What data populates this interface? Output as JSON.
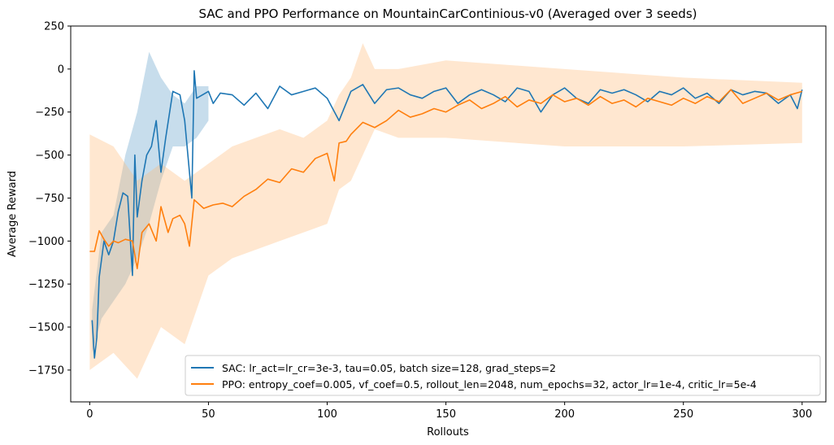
{
  "chart_data": {
    "type": "line",
    "title": "SAC and PPO Performance on MountainCarContinious-v0 (Averaged over 3 seeds)",
    "xlabel": "Rollouts",
    "ylabel": "Average Reward",
    "xlim": [
      -8,
      310
    ],
    "ylim": [
      -1935,
      250
    ],
    "xticks": [
      0,
      50,
      100,
      150,
      200,
      250,
      300
    ],
    "yticks": [
      250,
      0,
      -250,
      -500,
      -750,
      -1000,
      -1250,
      -1500,
      -1750
    ],
    "grid": false,
    "legend_position": "lower-right",
    "series": [
      {
        "name": "SAC: lr_act=lr_cr=3e-3, tau=0.05, batch size=128, grad_steps=2",
        "color": "#1f77b4",
        "x": [
          1,
          2,
          3,
          4,
          6,
          8,
          10,
          12,
          14,
          16,
          18,
          19,
          20,
          22,
          24,
          26,
          28,
          30,
          32,
          35,
          38,
          40,
          43,
          44,
          45,
          50,
          52,
          55,
          60,
          65,
          70,
          75,
          80,
          85,
          90,
          95,
          100,
          105,
          110,
          115,
          120,
          125,
          130,
          135,
          140,
          145,
          150,
          155,
          160,
          165,
          170,
          175,
          180,
          185,
          190,
          195,
          200,
          205,
          210,
          215,
          220,
          225,
          230,
          235,
          240,
          245,
          250,
          255,
          260,
          265,
          270,
          275,
          280,
          285,
          290,
          295,
          298,
          300
        ],
        "values": [
          -1460,
          -1680,
          -1560,
          -1210,
          -1000,
          -1080,
          -1000,
          -830,
          -720,
          -740,
          -1200,
          -500,
          -860,
          -650,
          -500,
          -450,
          -300,
          -600,
          -400,
          -130,
          -150,
          -300,
          -750,
          -10,
          -170,
          -130,
          -200,
          -140,
          -150,
          -210,
          -140,
          -230,
          -100,
          -150,
          -130,
          -110,
          -170,
          -300,
          -130,
          -90,
          -200,
          -120,
          -110,
          -150,
          -170,
          -130,
          -110,
          -200,
          -150,
          -120,
          -150,
          -190,
          -110,
          -130,
          -250,
          -150,
          -110,
          -170,
          -200,
          -120,
          -140,
          -120,
          -150,
          -190,
          -130,
          -150,
          -110,
          -170,
          -140,
          -200,
          -120,
          -150,
          -130,
          -140,
          -200,
          -150,
          -230,
          -120
        ]
      },
      {
        "name": "PPO: entropy_coef=0.005, vf_coef=0.5, rollout_len=2048, num_epochs=32, actor_lr=1e-4, critic_lr=5e-4",
        "color": "#ff7f0e",
        "x": [
          0,
          2,
          4,
          6,
          8,
          10,
          12,
          15,
          18,
          20,
          22,
          25,
          28,
          30,
          33,
          35,
          38,
          40,
          42,
          44,
          48,
          52,
          56,
          60,
          65,
          70,
          75,
          80,
          85,
          90,
          95,
          100,
          103,
          105,
          108,
          110,
          115,
          120,
          125,
          130,
          135,
          140,
          145,
          150,
          155,
          160,
          165,
          170,
          175,
          180,
          185,
          190,
          195,
          200,
          205,
          210,
          215,
          220,
          225,
          230,
          235,
          240,
          245,
          250,
          255,
          260,
          265,
          270,
          275,
          280,
          285,
          290,
          295,
          300
        ],
        "values": [
          -1060,
          -1060,
          -940,
          -990,
          -1030,
          -1000,
          -1010,
          -990,
          -1000,
          -1160,
          -950,
          -900,
          -1000,
          -800,
          -950,
          -870,
          -850,
          -900,
          -1030,
          -760,
          -810,
          -790,
          -780,
          -800,
          -740,
          -700,
          -640,
          -660,
          -580,
          -600,
          -520,
          -490,
          -650,
          -430,
          -420,
          -380,
          -310,
          -340,
          -300,
          -240,
          -280,
          -260,
          -230,
          -250,
          -210,
          -180,
          -230,
          -200,
          -160,
          -220,
          -180,
          -200,
          -150,
          -190,
          -170,
          -210,
          -160,
          -200,
          -180,
          -220,
          -170,
          -190,
          -210,
          -170,
          -200,
          -160,
          -190,
          -120,
          -200,
          -170,
          -140,
          -180,
          -150,
          -130
        ]
      }
    ],
    "confidence_bands": [
      {
        "series": 0,
        "color": "#1f77b4",
        "x": [
          1,
          5,
          10,
          15,
          20,
          25,
          30,
          35,
          40,
          45,
          50
        ],
        "upper": [
          -1400,
          -950,
          -850,
          -500,
          -250,
          100,
          -50,
          -150,
          -200,
          -100,
          -100
        ],
        "lower": [
          -1650,
          -1450,
          -1350,
          -1250,
          -1100,
          -900,
          -650,
          -450,
          -450,
          -400,
          -300
        ]
      },
      {
        "series": 1,
        "color": "#ffbb78",
        "x": [
          0,
          10,
          20,
          30,
          40,
          50,
          60,
          70,
          80,
          90,
          100,
          105,
          110,
          115,
          120,
          130,
          150,
          200,
          250,
          300
        ],
        "upper": [
          -380,
          -450,
          -650,
          -550,
          -650,
          -550,
          -450,
          -400,
          -350,
          -400,
          -300,
          -150,
          -50,
          150,
          0,
          0,
          50,
          0,
          -50,
          -80
        ],
        "lower": [
          -1750,
          -1650,
          -1800,
          -1500,
          -1600,
          -1200,
          -1100,
          -1050,
          -1000,
          -950,
          -900,
          -700,
          -650,
          -500,
          -350,
          -400,
          -400,
          -450,
          -450,
          -430
        ]
      }
    ]
  }
}
